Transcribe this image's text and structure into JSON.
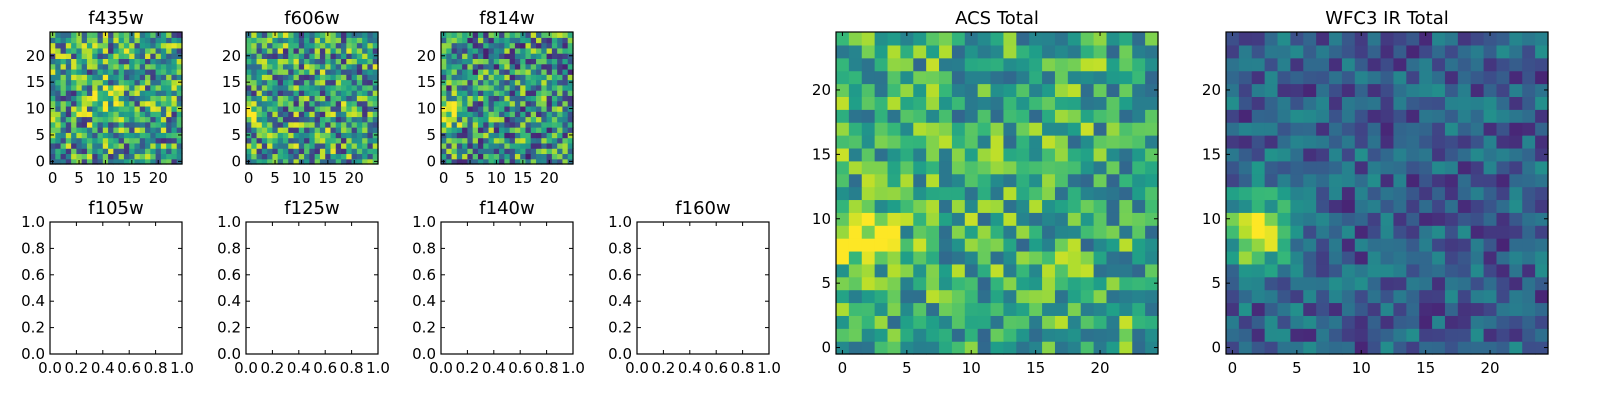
{
  "figure": {
    "background": "#ffffff",
    "colormap": "viridis"
  },
  "chart_data": [
    {
      "type": "heatmap",
      "title": "f435w",
      "xlabel": "",
      "ylabel": "",
      "grid_size": 25,
      "xlim": [
        0,
        25
      ],
      "ylim": [
        0,
        25
      ],
      "xticks": [
        0,
        5,
        10,
        15,
        20
      ],
      "yticks": [
        0,
        5,
        10,
        15,
        20
      ],
      "value_range": [
        0,
        1
      ],
      "seed": 11,
      "hotspots": [
        {
          "x": 10,
          "y": 11,
          "r": 4,
          "amp": 0.2
        },
        {
          "x": 15,
          "y": 16,
          "r": 4,
          "amp": 0.12
        }
      ],
      "base": 0.55,
      "noise": 0.42
    },
    {
      "type": "heatmap",
      "title": "f606w",
      "xlabel": "",
      "ylabel": "",
      "grid_size": 25,
      "xlim": [
        0,
        25
      ],
      "ylim": [
        0,
        25
      ],
      "xticks": [
        0,
        5,
        10,
        15,
        20
      ],
      "yticks": [
        0,
        5,
        10,
        15,
        20
      ],
      "value_range": [
        0,
        1
      ],
      "seed": 23,
      "hotspots": [
        {
          "x": 1,
          "y": 9,
          "r": 2.5,
          "amp": 0.45
        }
      ],
      "base": 0.55,
      "noise": 0.42
    },
    {
      "type": "heatmap",
      "title": "f814w",
      "xlabel": "",
      "ylabel": "",
      "grid_size": 25,
      "xlim": [
        0,
        25
      ],
      "ylim": [
        0,
        25
      ],
      "xticks": [
        0,
        5,
        10,
        15,
        20
      ],
      "yticks": [
        0,
        5,
        10,
        15,
        20
      ],
      "value_range": [
        0,
        1
      ],
      "seed": 37,
      "hotspots": [
        {
          "x": 1,
          "y": 9,
          "r": 2.5,
          "amp": 0.5
        }
      ],
      "base": 0.5,
      "noise": 0.42
    },
    {
      "type": "scatter",
      "title": "f105w",
      "xlabel": "",
      "ylabel": "",
      "xlim": [
        0,
        1
      ],
      "ylim": [
        0,
        1
      ],
      "xtick_labels": [
        "0.0",
        "0.2",
        "0.4",
        "0.6",
        "0.8",
        "1.0"
      ],
      "ytick_labels": [
        "0.0",
        "0.2",
        "0.4",
        "0.6",
        "0.8",
        "1.0"
      ],
      "x": [],
      "y": []
    },
    {
      "type": "scatter",
      "title": "f125w",
      "xlabel": "",
      "ylabel": "",
      "xlim": [
        0,
        1
      ],
      "ylim": [
        0,
        1
      ],
      "xtick_labels": [
        "0.0",
        "0.2",
        "0.4",
        "0.6",
        "0.8",
        "1.0"
      ],
      "ytick_labels": [
        "0.0",
        "0.2",
        "0.4",
        "0.6",
        "0.8",
        "1.0"
      ],
      "x": [],
      "y": []
    },
    {
      "type": "scatter",
      "title": "f140w",
      "xlabel": "",
      "ylabel": "",
      "xlim": [
        0,
        1
      ],
      "ylim": [
        0,
        1
      ],
      "xtick_labels": [
        "0.0",
        "0.2",
        "0.4",
        "0.6",
        "0.8",
        "1.0"
      ],
      "ytick_labels": [
        "0.0",
        "0.2",
        "0.4",
        "0.6",
        "0.8",
        "1.0"
      ],
      "x": [],
      "y": []
    },
    {
      "type": "scatter",
      "title": "f160w",
      "xlabel": "",
      "ylabel": "",
      "xlim": [
        0,
        1
      ],
      "ylim": [
        0,
        1
      ],
      "xtick_labels": [
        "0.0",
        "0.2",
        "0.4",
        "0.6",
        "0.8",
        "1.0"
      ],
      "ytick_labels": [
        "0.0",
        "0.2",
        "0.4",
        "0.6",
        "0.8",
        "1.0"
      ],
      "x": [],
      "y": []
    },
    {
      "type": "heatmap",
      "title": "ACS Total",
      "xlabel": "",
      "ylabel": "",
      "grid_size": 25,
      "xlim": [
        0,
        25
      ],
      "ylim": [
        0,
        25
      ],
      "xticks": [
        0,
        5,
        10,
        15,
        20
      ],
      "yticks": [
        0,
        5,
        10,
        15,
        20
      ],
      "value_range": [
        0,
        1
      ],
      "seed": 53,
      "hotspots": [
        {
          "x": 1.5,
          "y": 9,
          "r": 2.6,
          "amp": 0.45
        }
      ],
      "base": 0.62,
      "noise": 0.3
    },
    {
      "type": "heatmap",
      "title": "WFC3 IR Total",
      "xlabel": "",
      "ylabel": "",
      "grid_size": 25,
      "xlim": [
        0,
        25
      ],
      "ylim": [
        0,
        25
      ],
      "xticks": [
        0,
        5,
        10,
        15,
        20
      ],
      "yticks": [
        0,
        5,
        10,
        15,
        20
      ],
      "value_range": [
        0,
        1
      ],
      "seed": 71,
      "hotspots": [
        {
          "x": 2,
          "y": 9,
          "r": 3.5,
          "amp": 0.62
        }
      ],
      "base": 0.3,
      "noise": 0.2
    }
  ]
}
